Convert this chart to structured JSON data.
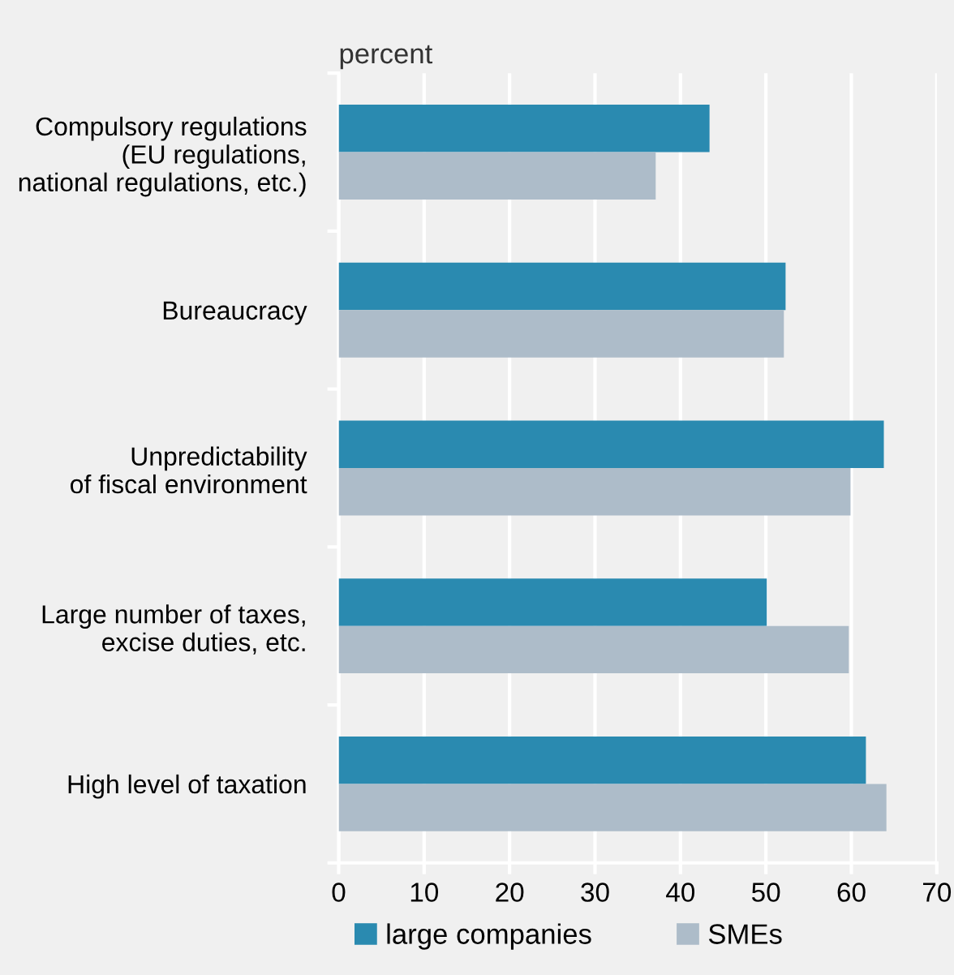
{
  "chart_data": {
    "type": "bar",
    "orientation": "horizontal",
    "xlabel": "percent",
    "categories": [
      "Compulsory regulations\n(EU regulations,\nnational regulations, etc.)",
      "Bureaucracy",
      "Unpredictability\nof fiscal environment",
      "Large number of taxes,\nexcise duties, etc.",
      "High level of taxation"
    ],
    "series": [
      {
        "name": "large companies",
        "color": "#2a8ab0",
        "values": [
          43.4,
          52.3,
          63.8,
          50.1,
          61.7
        ]
      },
      {
        "name": "SMEs",
        "color": "#adbcc9",
        "values": [
          37.1,
          52.1,
          59.9,
          59.7,
          64.1
        ]
      }
    ],
    "xlim": [
      0,
      70
    ],
    "xticks": [
      0,
      10,
      20,
      30,
      40,
      50,
      60,
      70
    ],
    "grid": "x",
    "legend": "bottom"
  }
}
